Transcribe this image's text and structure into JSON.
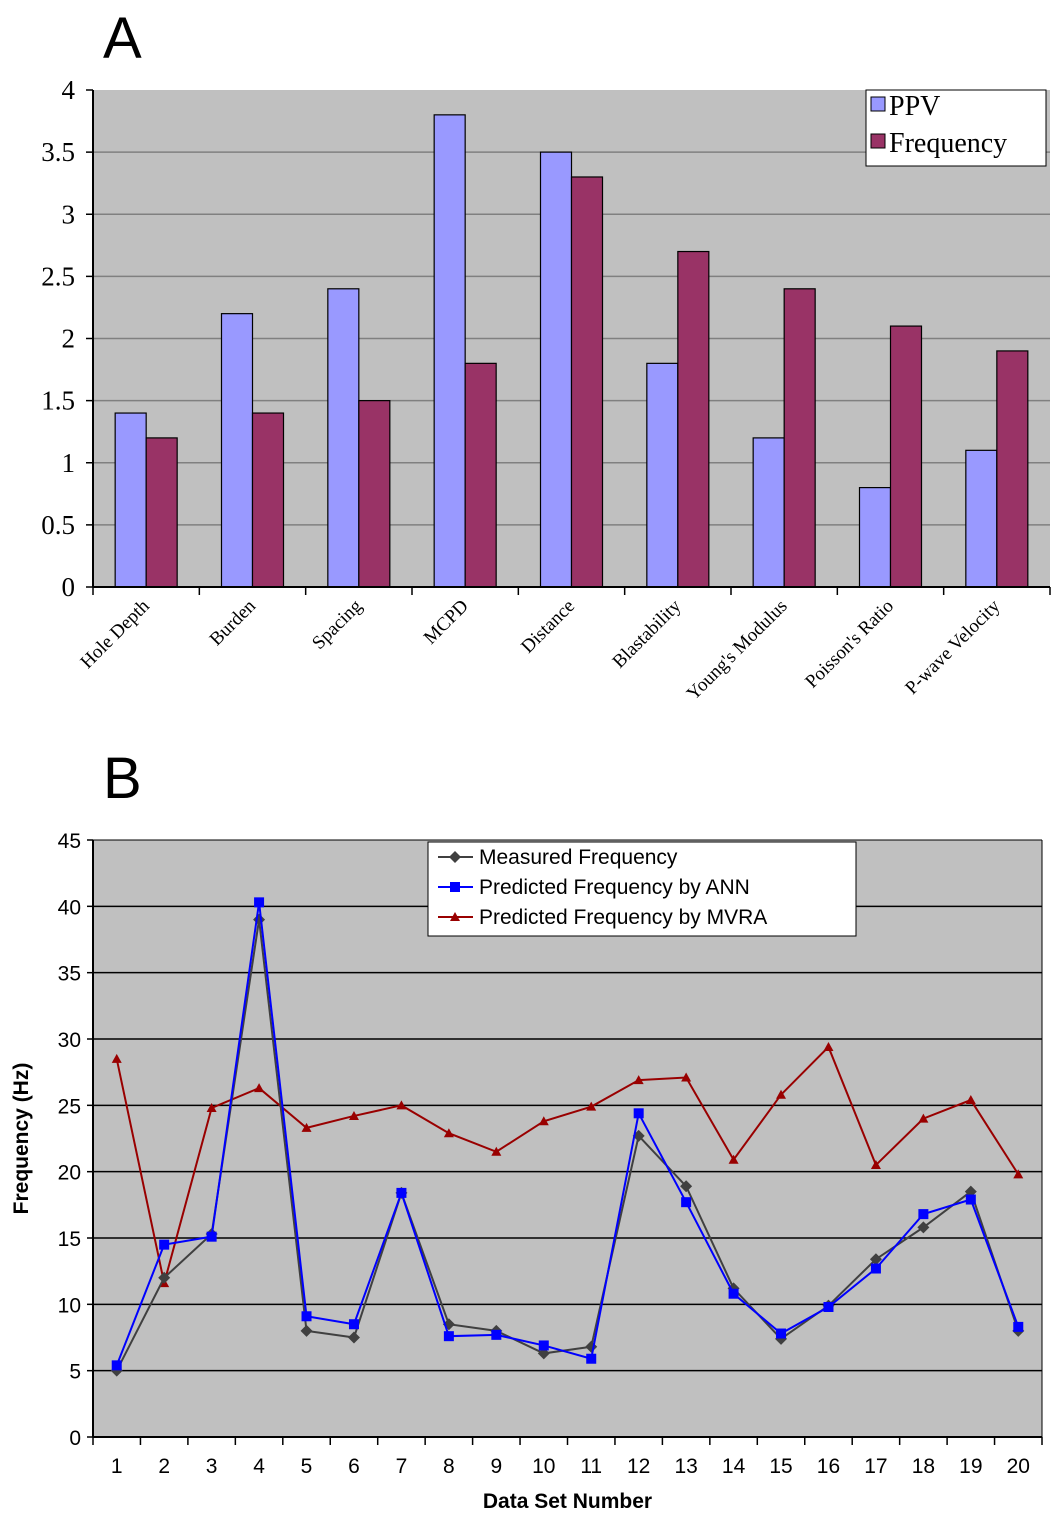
{
  "panels": {
    "a_label": "A",
    "b_label": "B"
  },
  "chart_data": [
    {
      "type": "bar",
      "categories": [
        "Hole Depth",
        "Burden",
        "Spacing",
        "MCPD",
        "Distance",
        "Blastability",
        "Young's Modulus",
        "Poisson's Ratio",
        "P-wave Velocity"
      ],
      "series": [
        {
          "name": "PPV",
          "color": "#9999ff",
          "values": [
            1.4,
            2.2,
            2.4,
            3.8,
            3.5,
            1.8,
            1.2,
            0.8,
            1.1
          ]
        },
        {
          "name": "Frequency",
          "color": "#993366",
          "values": [
            1.2,
            1.4,
            1.5,
            1.8,
            3.3,
            2.7,
            2.4,
            2.1,
            1.9
          ]
        }
      ],
      "ylim": [
        0,
        4
      ],
      "yticks": [
        "0",
        "0.5",
        "1",
        "1.5",
        "2",
        "2.5",
        "3",
        "3.5",
        "4"
      ],
      "grid": true,
      "plot_background": "#c0c0c0",
      "legend_position": "top-right"
    },
    {
      "type": "line",
      "x": [
        1,
        2,
        3,
        4,
        5,
        6,
        7,
        8,
        9,
        10,
        11,
        12,
        13,
        14,
        15,
        16,
        17,
        18,
        19,
        20
      ],
      "xticks": [
        "1",
        "2",
        "3",
        "4",
        "5",
        "6",
        "7",
        "8",
        "9",
        "10",
        "11",
        "12",
        "13",
        "14",
        "15",
        "16",
        "17",
        "18",
        "19",
        "20"
      ],
      "series": [
        {
          "name": "Measured Frequency",
          "color": "#404040",
          "marker": "diamond",
          "values": [
            5,
            12,
            15.3,
            39,
            8,
            7.5,
            18.4,
            8.5,
            8,
            6.3,
            6.8,
            22.7,
            18.9,
            11.2,
            7.4,
            9.9,
            13.4,
            15.8,
            18.5,
            8
          ]
        },
        {
          "name": "Predicted Frequency by ANN",
          "color": "#0000ff",
          "marker": "square",
          "values": [
            5.4,
            14.5,
            15.1,
            40.3,
            9.1,
            8.5,
            18.4,
            7.6,
            7.7,
            6.9,
            5.9,
            24.4,
            17.7,
            10.8,
            7.8,
            9.8,
            12.7,
            16.8,
            17.9,
            8.3
          ]
        },
        {
          "name": "Predicted Frequency by MVRA",
          "color": "#990000",
          "marker": "triangle",
          "values": [
            28.5,
            11.6,
            24.8,
            26.3,
            23.3,
            24.2,
            25,
            22.9,
            21.5,
            23.8,
            24.9,
            26.9,
            27.1,
            20.9,
            25.8,
            29.4,
            20.5,
            24,
            25.4,
            19.8
          ]
        }
      ],
      "xlabel": "Data Set Number",
      "ylabel": "Frequency (Hz)",
      "ylim": [
        0,
        45
      ],
      "yticks": [
        "0",
        "5",
        "10",
        "15",
        "20",
        "25",
        "30",
        "35",
        "40",
        "45"
      ],
      "grid": true,
      "plot_background": "#c0c0c0",
      "legend_position": "top-center"
    }
  ]
}
